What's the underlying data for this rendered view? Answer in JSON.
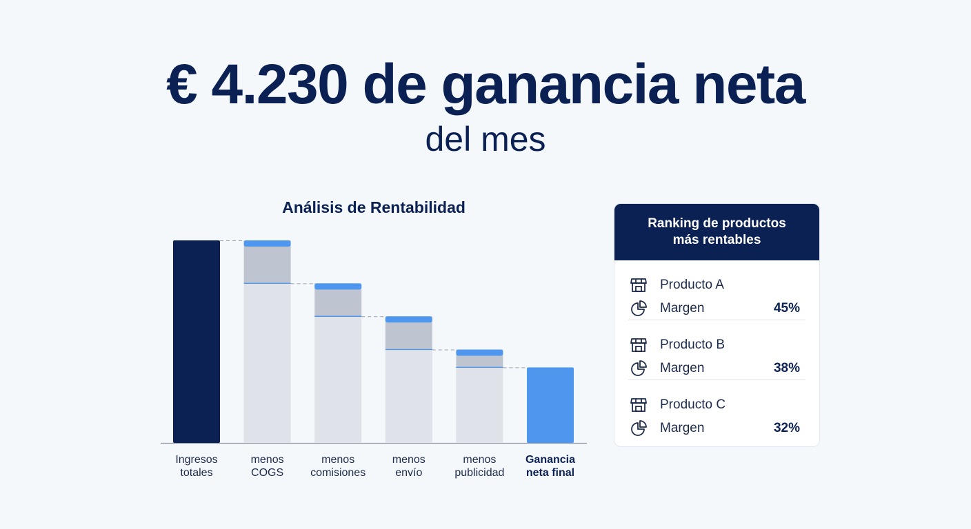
{
  "headline": "€ 4.230 de ganancia neta",
  "subline": "del mes",
  "chart_data": {
    "type": "waterfall",
    "title": "Análisis de Rentabilidad",
    "categories": [
      [
        "Ingresos",
        "totales"
      ],
      [
        "menos",
        "COGS"
      ],
      [
        "menos",
        "comisiones"
      ],
      [
        "menos",
        "envío"
      ],
      [
        "menos",
        "publicidad"
      ],
      [
        "Ganancia",
        "neta final"
      ]
    ],
    "steps": [
      {
        "kind": "total",
        "top": 100,
        "bottom": 0
      },
      {
        "kind": "decrease",
        "top": 100,
        "bottom": 78.8
      },
      {
        "kind": "decrease",
        "top": 78.8,
        "bottom": 62.5
      },
      {
        "kind": "decrease",
        "top": 62.5,
        "bottom": 46.1
      },
      {
        "kind": "decrease",
        "top": 46.1,
        "bottom": 37.3
      },
      {
        "kind": "result",
        "top": 37.3,
        "bottom": 0
      }
    ],
    "highlight_last_label": true,
    "colors": {
      "total": "#0b2154",
      "result": "#4f97ee",
      "cap": "#4f97ee",
      "drop": "#bfc5d0",
      "remaining": "#dfe2e8",
      "axis": "#8e96a5",
      "connector": "#98a2b5"
    }
  },
  "ranking": {
    "title_line1": "Ranking de productos",
    "title_line2": "más rentables",
    "items": [
      {
        "name": "Producto A",
        "metric": "Margen",
        "value": "45%"
      },
      {
        "name": "Producto B",
        "metric": "Margen",
        "value": "38%"
      },
      {
        "name": "Producto C",
        "metric": "Margen",
        "value": "32%"
      }
    ],
    "icons": {
      "product": "store-icon",
      "metric": "pie-chart-icon"
    }
  }
}
